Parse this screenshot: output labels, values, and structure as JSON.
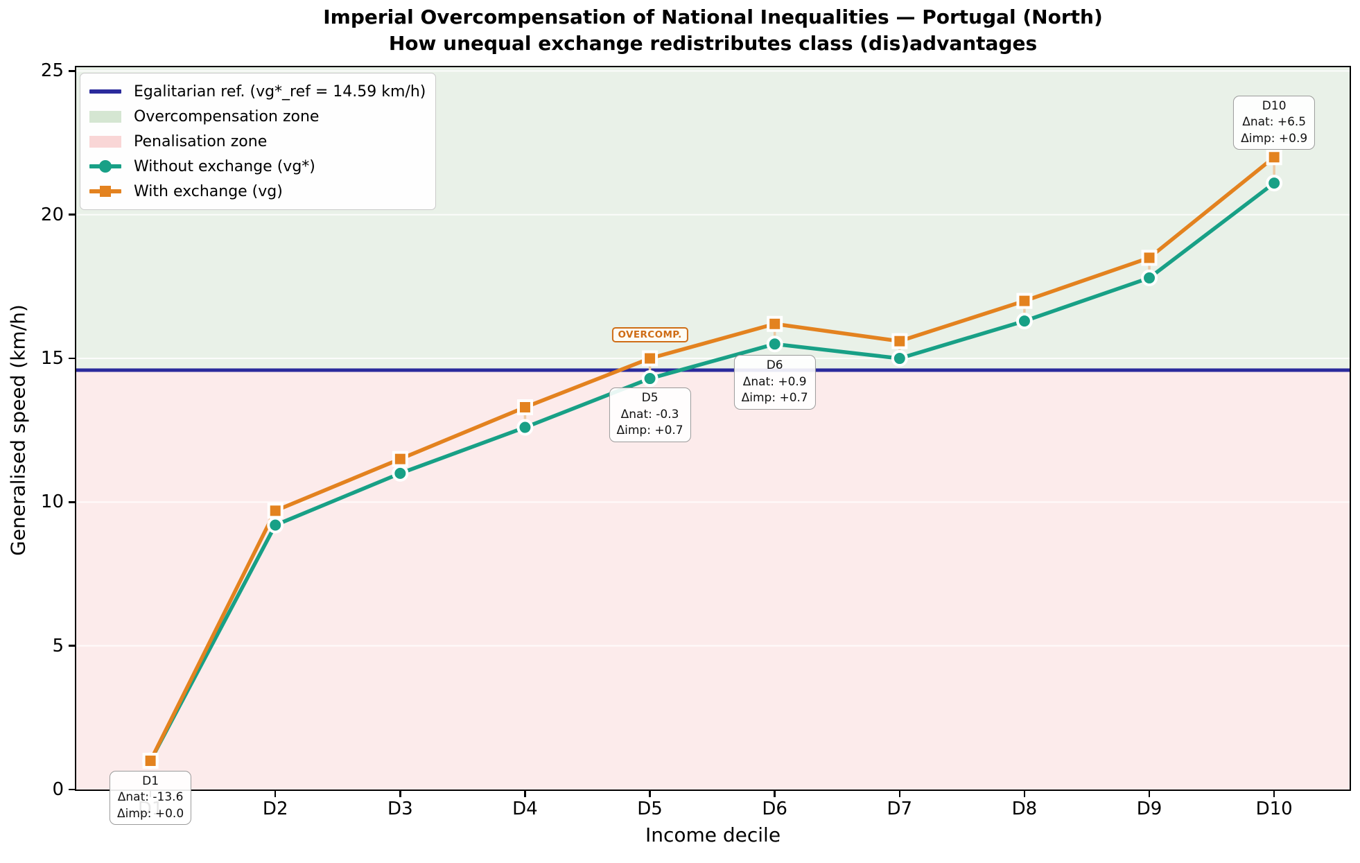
{
  "title": {
    "line1": "Imperial Overcompensation of National Inequalities — Portugal (North)",
    "line2": "How unequal exchange redistributes class (dis)advantages"
  },
  "axes": {
    "x_label": "Income decile",
    "y_label": "Generalised speed (km/h)",
    "x_tick_labels": [
      "D1",
      "D2",
      "D3",
      "D4",
      "D5",
      "D6",
      "D7",
      "D8",
      "D9",
      "D10"
    ],
    "y_tick_labels": [
      "0",
      "5",
      "10",
      "15",
      "20",
      "25"
    ]
  },
  "legend": {
    "position": "upper left",
    "items": [
      {
        "label": "Egalitarian ref. (vg*_ref = 14.59 km/h)",
        "swatch": "navy-line"
      },
      {
        "label": "Overcompensation zone",
        "swatch": "green-patch"
      },
      {
        "label": "Penalisation zone",
        "swatch": "pink-patch"
      },
      {
        "label": "Without exchange (vg*)",
        "swatch": "teal-line-circle-marker"
      },
      {
        "label": "With exchange (vg)",
        "swatch": "orange-line-square-marker"
      }
    ]
  },
  "colors": {
    "teal_series": "#18a086",
    "orange_series": "#e3821f",
    "reference_line": "#2a2a9c",
    "zone_green": "#e9f1e8",
    "zone_pink": "#fcebeb",
    "legend_green_patch": "#d5e6d2",
    "legend_pink_patch": "#f9d6d6",
    "delta_connector": "#eec9a3",
    "overcomp_label": "#cf6d15"
  },
  "chart_data": {
    "type": "line",
    "categories": [
      "D1",
      "D2",
      "D3",
      "D4",
      "D5",
      "D6",
      "D7",
      "D8",
      "D9",
      "D10"
    ],
    "series": [
      {
        "name": "Without exchange (vg*)",
        "marker": "circle",
        "color": "#18a086",
        "values": [
          1.0,
          9.2,
          11.0,
          12.6,
          14.3,
          15.5,
          15.0,
          16.3,
          17.8,
          21.1
        ]
      },
      {
        "name": "With exchange (vg)",
        "marker": "square",
        "color": "#e3821f",
        "values": [
          1.0,
          9.7,
          11.5,
          13.3,
          15.0,
          16.2,
          15.6,
          17.0,
          18.5,
          22.0
        ]
      }
    ],
    "reference_line": {
      "label": "Egalitarian ref.",
      "value": 14.59,
      "unit": "km/h"
    },
    "zones": [
      {
        "name": "Overcompensation zone",
        "from": 14.59,
        "to": 25.13,
        "color": "#e9f1e8"
      },
      {
        "name": "Penalisation zone",
        "from": 0,
        "to": 14.59,
        "color": "#fcebeb"
      }
    ],
    "title": "Imperial Overcompensation of National Inequalities — Portugal (North)",
    "xlabel": "Income decile",
    "ylabel": "Generalised speed (km/h)",
    "ylim": [
      0,
      25.13
    ],
    "yticks": [
      0,
      5,
      10,
      15,
      20,
      25
    ],
    "grid": "horizontal white lines at y ticks",
    "legend_position": "upper left",
    "annotations": [
      {
        "decile": "D1",
        "lines": [
          "D1",
          "Δnat: -13.6",
          "Δimp: +0.0"
        ],
        "anchor_series": "vg*",
        "anchor_value": 1.0,
        "offset_y": 14
      },
      {
        "decile": "D5",
        "lines": [
          "D5",
          "Δnat: -0.3",
          "Δimp: +0.7"
        ],
        "anchor_series": "vg*",
        "anchor_value": 14.3,
        "offset_y": 13
      },
      {
        "decile": "D6",
        "lines": [
          "D6",
          "Δnat: +0.9",
          "Δimp: +0.7"
        ],
        "anchor_series": "vg*",
        "anchor_value": 15.5,
        "offset_y": 16
      },
      {
        "decile": "D10",
        "lines": [
          "D10",
          "Δnat: +6.5",
          "Δimp: +0.9"
        ],
        "anchor_series": "vg",
        "anchor_value": 22.0,
        "offset_y": -89
      }
    ],
    "overcomp_label": {
      "text": "OVERCOMP.",
      "decile": "D5",
      "anchor_series": "vg",
      "anchor_value": 15.0,
      "offset_y": -45
    }
  }
}
